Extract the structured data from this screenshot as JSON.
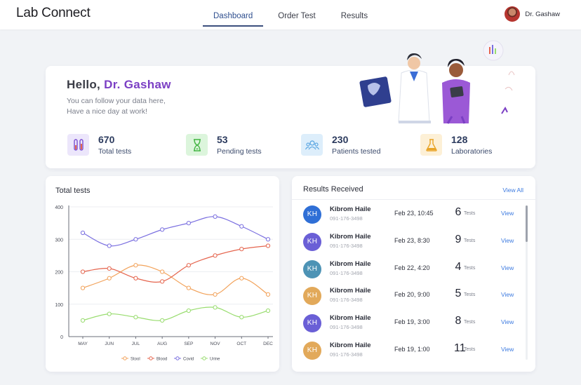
{
  "header": {
    "logo": "Lab Connect",
    "nav": [
      "Dashboard",
      "Order Test",
      "Results"
    ],
    "active_nav": "Dashboard",
    "user_name": "Dr. Gashaw"
  },
  "welcome": {
    "greeting": "Hello,",
    "doctor": "Dr. Gashaw",
    "subtitle_line1": "You can follow your data here,",
    "subtitle_line2": "Have a nice day at work!",
    "stats": [
      {
        "value": "670",
        "label": "Total tests",
        "icon": "test-tubes-icon",
        "bg": "#ece6fb",
        "color": "#7b4fd0"
      },
      {
        "value": "53",
        "label": "Pending tests",
        "icon": "hourglass-icon",
        "bg": "#dcf5dc",
        "color": "#43b543"
      },
      {
        "value": "230",
        "label": "Patients tested",
        "icon": "people-icon",
        "bg": "#ddeefb",
        "color": "#4fa0e0"
      },
      {
        "value": "128",
        "label": "Laboratories",
        "icon": "flask-icon",
        "bg": "#fdf0d6",
        "color": "#e9a426"
      }
    ]
  },
  "chart_data": {
    "type": "line",
    "title": "Total tests",
    "categories": [
      "MAY",
      "JUN",
      "JUL",
      "AUG",
      "SEP",
      "NOV",
      "OCT",
      "DEC"
    ],
    "ylim": [
      0,
      400
    ],
    "yticks": [
      0,
      100,
      200,
      300,
      400
    ],
    "grid": true,
    "legend_position": "bottom",
    "series": [
      {
        "name": "Stool",
        "color": "#f2a25a",
        "values": [
          150,
          180,
          220,
          200,
          150,
          130,
          180,
          130
        ]
      },
      {
        "name": "Blood",
        "color": "#e5654e",
        "values": [
          200,
          210,
          180,
          170,
          220,
          250,
          270,
          280
        ]
      },
      {
        "name": "Covid",
        "color": "#7a6fe0",
        "values": [
          320,
          280,
          300,
          330,
          350,
          370,
          340,
          300
        ]
      },
      {
        "name": "Urine",
        "color": "#98dc6e",
        "values": [
          50,
          70,
          60,
          50,
          80,
          90,
          60,
          80
        ]
      }
    ]
  },
  "results": {
    "title": "Results Received",
    "view_all": "View All",
    "rows": [
      {
        "initials": "KH",
        "name": "Kibrom Haile",
        "phone": "091-176-3498",
        "date": "Feb 23, 10:45",
        "count": "6",
        "tests": "Tests",
        "view": "View",
        "color": "#2f6fd6"
      },
      {
        "initials": "KH",
        "name": "Kibrom Haile",
        "phone": "091-176-3498",
        "date": "Feb 23, 8:30",
        "count": "9",
        "tests": "Tests",
        "view": "View",
        "color": "#6a5fd6"
      },
      {
        "initials": "KH",
        "name": "Kibrom Haile",
        "phone": "091-176-3498",
        "date": "Feb 22, 4:20",
        "count": "4",
        "tests": "Tests",
        "view": "View",
        "color": "#4d93b5"
      },
      {
        "initials": "KH",
        "name": "Kibrom Haile",
        "phone": "091-176-3498",
        "date": "Feb 20, 9:00",
        "count": "5",
        "tests": "Tests",
        "view": "View",
        "color": "#e2a95a"
      },
      {
        "initials": "KH",
        "name": "Kibrom Haile",
        "phone": "091-176-3498",
        "date": "Feb 19, 3:00",
        "count": "8",
        "tests": "Tests",
        "view": "View",
        "color": "#6a5fd6"
      },
      {
        "initials": "KH",
        "name": "Kibrom Haile",
        "phone": "091-176-3498",
        "date": "Feb 19, 1:00",
        "count": "11",
        "tests": "Tests",
        "view": "View",
        "color": "#e2a95a"
      }
    ]
  }
}
